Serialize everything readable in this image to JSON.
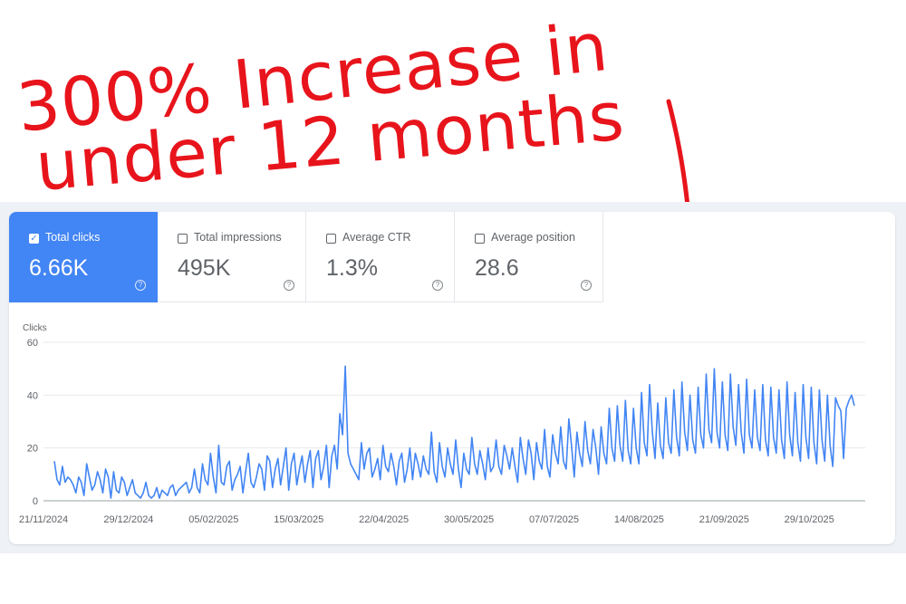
{
  "annotation": {
    "line1": "300% Increase in",
    "line2": "under 12 months",
    "color": "#e8141c"
  },
  "metrics": [
    {
      "label": "Total clicks",
      "value": "6.66K",
      "checked": true
    },
    {
      "label": "Total impressions",
      "value": "495K",
      "checked": false
    },
    {
      "label": "Average CTR",
      "value": "1.3%",
      "checked": false
    },
    {
      "label": "Average position",
      "value": "28.6",
      "checked": false
    }
  ],
  "colors": {
    "accent": "#4285f4",
    "line": "#4285f4",
    "background": "#eef1f6"
  },
  "chart_data": {
    "type": "line",
    "ylabel": "Clicks",
    "ylim": [
      0,
      60
    ],
    "yticks": [
      0,
      20,
      40,
      60
    ],
    "xticks": [
      "21/11/2024",
      "29/12/2024",
      "05/02/2025",
      "15/03/2025",
      "22/04/2025",
      "30/05/2025",
      "07/07/2025",
      "14/08/2025",
      "21/09/2025",
      "29/10/2025"
    ],
    "x_start": "21/11/2024",
    "x_end": "23/11/2025",
    "grid": true,
    "series": [
      {
        "color": "#4285f4",
        "values": [
          15,
          8,
          6,
          13,
          7,
          9,
          8,
          6,
          3,
          9,
          7,
          2,
          14,
          9,
          4,
          6,
          11,
          8,
          3,
          12,
          9,
          1,
          11,
          4,
          3,
          9,
          7,
          2,
          5,
          8,
          3,
          2,
          1,
          3,
          7,
          2,
          1,
          2,
          5,
          1,
          4,
          3,
          2,
          5,
          6,
          2,
          4,
          5,
          6,
          7,
          3,
          5,
          12,
          5,
          3,
          14,
          8,
          6,
          18,
          9,
          3,
          21,
          7,
          6,
          13,
          15,
          4,
          8,
          10,
          13,
          3,
          11,
          18,
          7,
          5,
          9,
          14,
          12,
          4,
          17,
          15,
          5,
          12,
          16,
          6,
          13,
          20,
          4,
          14,
          18,
          6,
          12,
          17,
          7,
          14,
          19,
          5,
          16,
          19,
          8,
          13,
          21,
          5,
          17,
          21,
          12,
          33,
          25,
          51,
          18,
          14,
          12,
          10,
          8,
          22,
          12,
          18,
          20,
          9,
          12,
          16,
          8,
          21,
          13,
          11,
          18,
          13,
          6,
          15,
          18,
          7,
          12,
          20,
          8,
          18,
          14,
          9,
          17,
          12,
          10,
          26,
          11,
          7,
          22,
          13,
          9,
          20,
          14,
          10,
          23,
          12,
          5,
          18,
          12,
          10,
          24,
          14,
          10,
          19,
          14,
          8,
          20,
          11,
          13,
          23,
          13,
          10,
          21,
          17,
          12,
          20,
          13,
          7,
          24,
          16,
          10,
          23,
          18,
          8,
          22,
          15,
          12,
          27,
          13,
          9,
          25,
          18,
          14,
          28,
          15,
          12,
          31,
          21,
          9,
          26,
          18,
          13,
          30,
          19,
          14,
          27,
          20,
          10,
          28,
          18,
          14,
          35,
          20,
          15,
          36,
          21,
          15,
          38,
          19,
          14,
          35,
          20,
          14,
          41,
          22,
          17,
          44,
          26,
          16,
          37,
          21,
          16,
          39,
          22,
          18,
          42,
          24,
          17,
          45,
          26,
          19,
          40,
          23,
          18,
          43,
          25,
          20,
          48,
          27,
          22,
          50,
          26,
          20,
          45,
          25,
          19,
          48,
          28,
          21,
          44,
          26,
          18,
          46,
          25,
          20,
          42,
          24,
          19,
          44,
          23,
          17,
          43,
          24,
          18,
          42,
          23,
          16,
          45,
          25,
          17,
          41,
          22,
          15,
          44,
          24,
          16,
          43,
          22,
          14,
          42,
          23,
          15,
          40,
          21,
          13,
          39,
          36,
          34,
          16,
          35,
          38,
          40,
          36
        ]
      }
    ]
  }
}
